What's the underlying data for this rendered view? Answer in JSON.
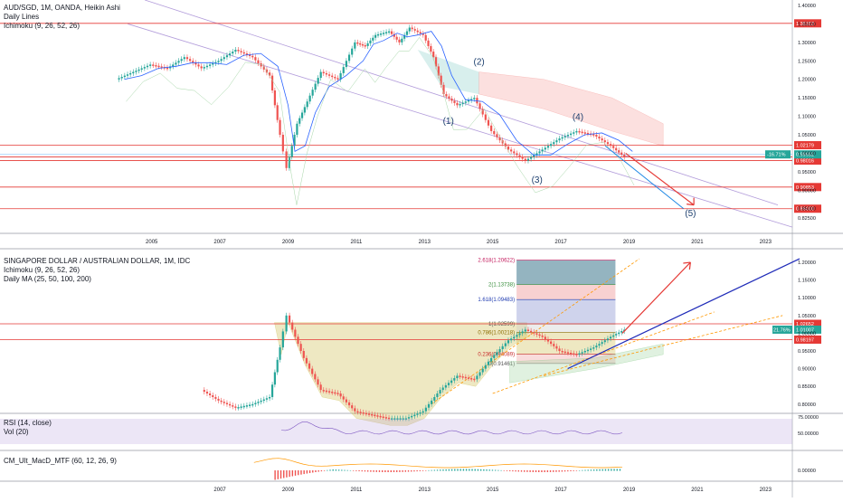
{
  "panes": {
    "top": {
      "title": "AUD/SGD, 1M, OANDA, Heikin Ashi",
      "indicators": [
        "Daily Lines",
        "Ichimoku (9, 26, 52, 26)"
      ],
      "price_labels": [
        "1.40000",
        "1.35000",
        "1.30000",
        "1.25000",
        "1.20000",
        "1.15000",
        "1.10000",
        "1.05000",
        "1.00000",
        "0.95000",
        "0.90000",
        "0.85000",
        "0.82500"
      ],
      "xaxis_labels": [
        "2005",
        "2007",
        "2009",
        "2011",
        "2013",
        "2015",
        "2017",
        "2019",
        "2021",
        "2023"
      ],
      "levels": [
        {
          "value": 1.35153,
          "label": "1.35153"
        },
        {
          "value": 1.02179,
          "label": "1.02179"
        },
        {
          "value": 0.98987,
          "label": "0.98987"
        },
        {
          "value": 0.98016,
          "label": "0.98016"
        },
        {
          "value": 0.90853,
          "label": "0.90853"
        },
        {
          "value": 0.85,
          "label": "0.85000"
        }
      ],
      "last_price": {
        "value": 0.99692,
        "label": "0.99692",
        "change": "-16.71%"
      },
      "waves": [
        "(1)",
        "(2)",
        "(3)",
        "(4)",
        "(5)"
      ]
    },
    "bottom": {
      "title": "SINGAPORE DOLLAR / AUSTRALIAN DOLLAR, 1M, IDC",
      "indicators": [
        "Ichimoku (9, 26, 52, 26)",
        "Daily MA (25, 50, 100, 200)"
      ],
      "price_labels": [
        "1.20000",
        "1.15000",
        "1.10000",
        "1.05000",
        "1.00000",
        "0.95000",
        "0.90000",
        "0.85000",
        "0.80000"
      ],
      "levels": [
        {
          "value": 1.02652,
          "label": "1.02652"
        },
        {
          "value": 0.98197,
          "label": "0.98197"
        }
      ],
      "last_price": {
        "value": 1.01007,
        "label": "1.01007",
        "change": "21.76%"
      },
      "fib": [
        {
          "label": "2.618(1.20622)",
          "value": 1.20622,
          "color": "#c2185b"
        },
        {
          "label": "2(1.13738)",
          "value": 1.13738,
          "color": "#388e3c"
        },
        {
          "label": "1.618(1.09483)",
          "value": 1.09483,
          "color": "#1e3ab0"
        },
        {
          "label": "1(1.02599)",
          "value": 1.02599,
          "color": "#555555"
        },
        {
          "label": "0.786(1.00218)",
          "value": 1.00218,
          "color": "#8b6d00"
        },
        {
          "label": "0.236(0.94089)",
          "value": 0.94089,
          "color": "#c62828"
        },
        {
          "label": "0(0.91461)",
          "value": 0.91461,
          "color": "#555555"
        }
      ]
    },
    "rsi": {
      "title": "RSI (14, close)",
      "sub": "Vol (20)",
      "price_labels": [
        "75.00000",
        "50.00000"
      ]
    },
    "macd": {
      "title": "CM_Ult_MacD_MTF (60, 12, 26, 9)",
      "price_labels": [
        "0.00000"
      ]
    },
    "bottom_xaxis_labels": [
      "2007",
      "2009",
      "2011",
      "2013",
      "2015",
      "2017",
      "2019",
      "2021",
      "2023"
    ]
  },
  "colors": {
    "up": "#26a69a",
    "down": "#ef5350",
    "level": "#e53935",
    "trend": "#b39ddb",
    "blue_line": "#1e2ab8",
    "orange_dash": "#ff9800",
    "last_tag": "#26a69a"
  },
  "chart_data": [
    {
      "type": "line",
      "title": "AUD/SGD, 1M, OANDA, Heikin Ashi",
      "x": [
        2004.0,
        2004.5,
        2005.0,
        2005.5,
        2006.0,
        2006.5,
        2007.0,
        2007.5,
        2008.0,
        2008.5,
        2008.8,
        2009.0,
        2009.3,
        2009.6,
        2010.0,
        2010.5,
        2011.0,
        2011.3,
        2011.6,
        2012.0,
        2012.3,
        2012.6,
        2013.0,
        2013.3,
        2013.6,
        2014.0,
        2014.5,
        2015.0,
        2015.5,
        2016.0,
        2016.5,
        2017.0,
        2017.5,
        2018.0,
        2018.5,
        2018.9
      ],
      "values": [
        1.2,
        1.22,
        1.24,
        1.23,
        1.26,
        1.23,
        1.25,
        1.28,
        1.26,
        1.21,
        1.05,
        0.96,
        1.08,
        1.14,
        1.22,
        1.2,
        1.3,
        1.29,
        1.32,
        1.33,
        1.3,
        1.34,
        1.32,
        1.26,
        1.16,
        1.13,
        1.15,
        1.06,
        1.01,
        0.98,
        1.01,
        1.04,
        1.06,
        1.05,
        1.02,
        0.99
      ],
      "ylim": [
        0.82,
        1.4
      ]
    },
    {
      "type": "line",
      "title": "SINGAPORE DOLLAR / AUSTRALIAN DOLLAR, 1M, IDC",
      "x": [
        2006.5,
        2007.0,
        2007.5,
        2008.0,
        2008.5,
        2008.8,
        2009.0,
        2009.5,
        2010.0,
        2010.5,
        2011.0,
        2011.5,
        2012.0,
        2012.5,
        2013.0,
        2013.5,
        2014.0,
        2014.5,
        2015.0,
        2015.5,
        2016.0,
        2016.5,
        2017.0,
        2017.5,
        2018.0,
        2018.5,
        2018.9
      ],
      "values": [
        0.84,
        0.81,
        0.79,
        0.8,
        0.82,
        0.96,
        1.05,
        0.93,
        0.84,
        0.83,
        0.78,
        0.77,
        0.76,
        0.76,
        0.78,
        0.84,
        0.88,
        0.87,
        0.93,
        0.98,
        1.01,
        0.99,
        0.95,
        0.94,
        0.96,
        0.99,
        1.01
      ],
      "ylim": [
        0.75,
        1.22
      ]
    }
  ]
}
